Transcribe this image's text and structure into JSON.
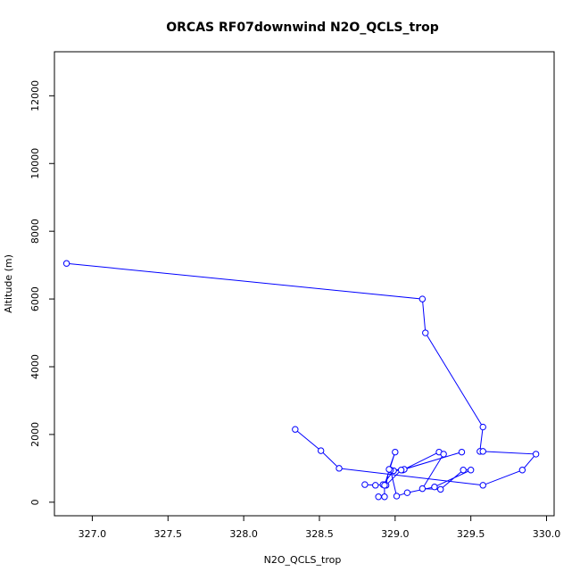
{
  "chart_data": {
    "type": "line",
    "title": "ORCAS RF07downwind N2O_QCLS_trop",
    "xlabel": "N2O_QCLS_trop",
    "ylabel": "Altitude (m)",
    "xlim": [
      326.75,
      330.05
    ],
    "ylim": [
      -400,
      13300
    ],
    "xticks": [
      327.0,
      327.5,
      328.0,
      328.5,
      329.0,
      329.5,
      330.0
    ],
    "xtick_labels": [
      "327.0",
      "327.5",
      "328.0",
      "328.5",
      "329.0",
      "329.5",
      "330.0"
    ],
    "yticks": [
      0,
      2000,
      4000,
      6000,
      8000,
      10000,
      12000
    ],
    "ytick_labels": [
      "0",
      "2000",
      "4000",
      "6000",
      "8000",
      "10000",
      "12000"
    ],
    "grid": false,
    "color": "#0000ff",
    "series": [
      {
        "markers": "open-circle",
        "points": [
          [
            326.83,
            7050
          ],
          [
            329.18,
            6000
          ],
          [
            329.2,
            5000
          ],
          [
            329.58,
            2220
          ],
          [
            329.56,
            1500
          ],
          [
            329.58,
            1500
          ],
          [
            329.93,
            1420
          ],
          [
            329.84,
            950
          ],
          [
            329.58,
            500
          ],
          [
            328.63,
            1000
          ],
          [
            328.51,
            1520
          ],
          [
            328.34,
            2150
          ]
        ]
      },
      {
        "markers": "open-circle",
        "points": [
          [
            328.8,
            520
          ],
          [
            328.87,
            500
          ],
          [
            328.92,
            520
          ],
          [
            328.99,
            930
          ],
          [
            329.05,
            950
          ],
          [
            329.29,
            1480
          ],
          [
            329.32,
            1420
          ],
          [
            329.18,
            400
          ],
          [
            329.3,
            380
          ],
          [
            329.45,
            950
          ],
          [
            329.5,
            950
          ],
          [
            329.26,
            450
          ],
          [
            329.08,
            280
          ],
          [
            329.01,
            180
          ],
          [
            328.97,
            950
          ],
          [
            329.06,
            970
          ],
          [
            329.44,
            1480
          ],
          [
            329.04,
            950
          ],
          [
            328.94,
            500
          ],
          [
            328.96,
            970
          ],
          [
            329.0,
            1480
          ],
          [
            328.93,
            500
          ],
          [
            328.93,
            160
          ],
          [
            328.89,
            160
          ]
        ]
      }
    ]
  }
}
